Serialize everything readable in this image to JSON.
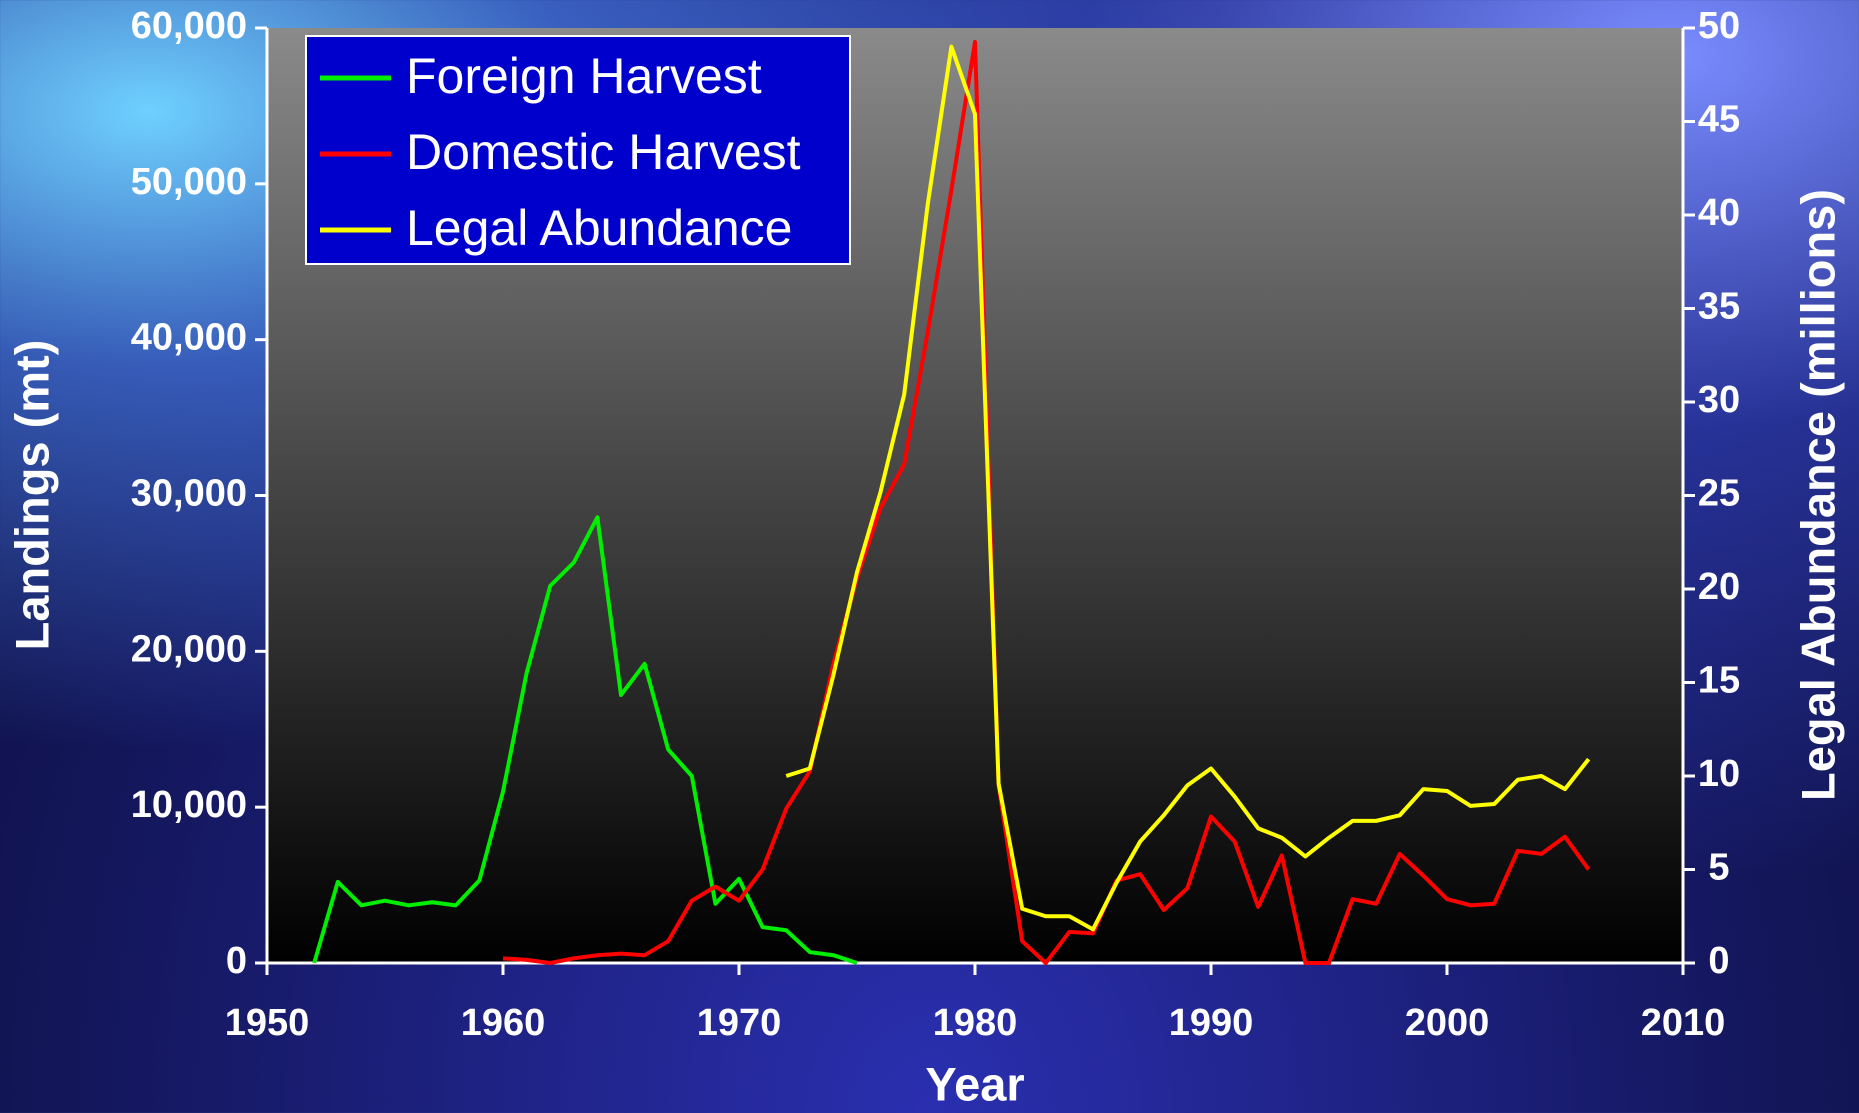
{
  "chart_data": {
    "type": "line",
    "x_label": "Year",
    "y_label": "Landings (mt)",
    "y2_label": "Legal Abundance (millions)",
    "xlim": [
      1950,
      2010
    ],
    "xticks": [
      1950,
      1960,
      1970,
      1980,
      1990,
      2000,
      2010
    ],
    "ylim": [
      0,
      60000
    ],
    "yticks": [
      0,
      {
        "value": 10000,
        "label": "10,000"
      },
      {
        "value": 20000,
        "label": "20,000"
      },
      {
        "value": 30000,
        "label": "30,000"
      },
      {
        "value": 40000,
        "label": "40,000"
      },
      {
        "value": 50000,
        "label": "50,000"
      },
      {
        "value": 60000,
        "label": "60,000"
      }
    ],
    "y2lim": [
      0,
      50
    ],
    "y2ticks": [
      0,
      5,
      10,
      15,
      20,
      25,
      30,
      35,
      40,
      45,
      50
    ],
    "legend": "upper left",
    "series": [
      {
        "name": "Foreign Harvest",
        "color": "#00ee00",
        "x": [
          1952,
          1953,
          1954,
          1955,
          1956,
          1957,
          1958,
          1959,
          1960,
          1961,
          1962,
          1963,
          1964,
          1965,
          1966,
          1967,
          1968,
          1969,
          1970,
          1971,
          1972,
          1973,
          1974,
          1975
        ],
        "values": [
          0,
          5200,
          3700,
          4000,
          3700,
          3900,
          3700,
          5300,
          11000,
          18600,
          24200,
          25700,
          28600,
          17200,
          19200,
          13700,
          12000,
          3800,
          5400,
          2300,
          2100,
          700,
          500,
          0
        ]
      },
      {
        "name": "Domestic Harvest",
        "color": "#ff0000",
        "x": [
          1960,
          1961,
          1962,
          1963,
          1964,
          1965,
          1966,
          1967,
          1968,
          1969,
          1970,
          1971,
          1972,
          1973,
          1974,
          1975,
          1976,
          1977,
          1978,
          1979,
          1980,
          1981,
          1982,
          1983,
          1984,
          1985,
          1986,
          1987,
          1988,
          1989,
          1990,
          1991,
          1992,
          1993,
          1994,
          1995,
          1996,
          1997,
          1998,
          1999,
          2000,
          2001,
          2002,
          2003,
          2004,
          2005,
          2006
        ],
        "values": [
          300,
          200,
          0,
          300,
          500,
          600,
          500,
          1400,
          4000,
          4900,
          4000,
          6000,
          9900,
          12300,
          19200,
          24700,
          29200,
          32000,
          40500,
          49600,
          59100,
          11400,
          1400,
          0,
          2000,
          1900,
          5300,
          5700,
          3400,
          4800,
          9400,
          7800,
          3600,
          6900,
          0,
          0,
          4100,
          3800,
          7000,
          5600,
          4100,
          3700,
          3800,
          7200,
          7000,
          8100,
          6000
        ]
      },
      {
        "name": "Legal Abundance",
        "color": "#ffff00",
        "axis": "y2",
        "x": [
          1972,
          1973,
          1974,
          1975,
          1976,
          1977,
          1978,
          1979,
          1980,
          1981,
          1982,
          1983,
          1984,
          1985,
          1986,
          1987,
          1988,
          1989,
          1990,
          1991,
          1992,
          1993,
          1994,
          1995,
          1996,
          1997,
          1998,
          1999,
          2000,
          2001,
          2002,
          2003,
          2004,
          2005,
          2006
        ],
        "values": [
          10.0,
          10.4,
          15.4,
          20.9,
          25.2,
          30.4,
          40.6,
          49.0,
          45.4,
          9.6,
          2.9,
          2.5,
          2.5,
          1.8,
          4.3,
          6.5,
          7.9,
          9.5,
          10.4,
          8.9,
          7.2,
          6.7,
          5.7,
          6.7,
          7.6,
          7.6,
          7.9,
          9.3,
          9.2,
          8.4,
          8.5,
          9.8,
          10.0,
          9.3,
          10.9
        ]
      }
    ]
  }
}
